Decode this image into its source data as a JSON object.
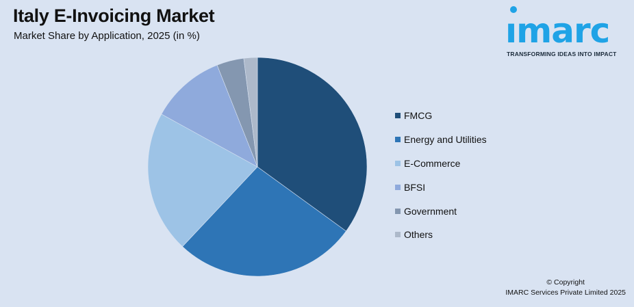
{
  "header": {
    "title": "Italy E-Invoicing Market",
    "subtitle": "Market Share by Application, 2025 (in %)"
  },
  "logo": {
    "word": "ımarc",
    "tagline": "TRANSFORMING IDEAS INTO IMPACT",
    "color": "#1fa3e6"
  },
  "footer": {
    "line1": "© Copyright",
    "line2": "IMARC Services Private Limited 2025"
  },
  "chart_data": {
    "type": "pie",
    "title": "Italy E-Invoicing Market",
    "subtitle": "Market Share by Application, 2025 (in %)",
    "categories": [
      "FMCG",
      "Energy and Utilities",
      "E-Commerce",
      "BFSI",
      "Government",
      "Others"
    ],
    "values": [
      35,
      27,
      21,
      11,
      4,
      2
    ],
    "colors": [
      "#1f4e79",
      "#2e75b6",
      "#9dc3e6",
      "#8faadc",
      "#8497b0",
      "#adb9ca"
    ],
    "start_angle_deg": 0,
    "direction": "clockwise",
    "legend_position": "right"
  }
}
